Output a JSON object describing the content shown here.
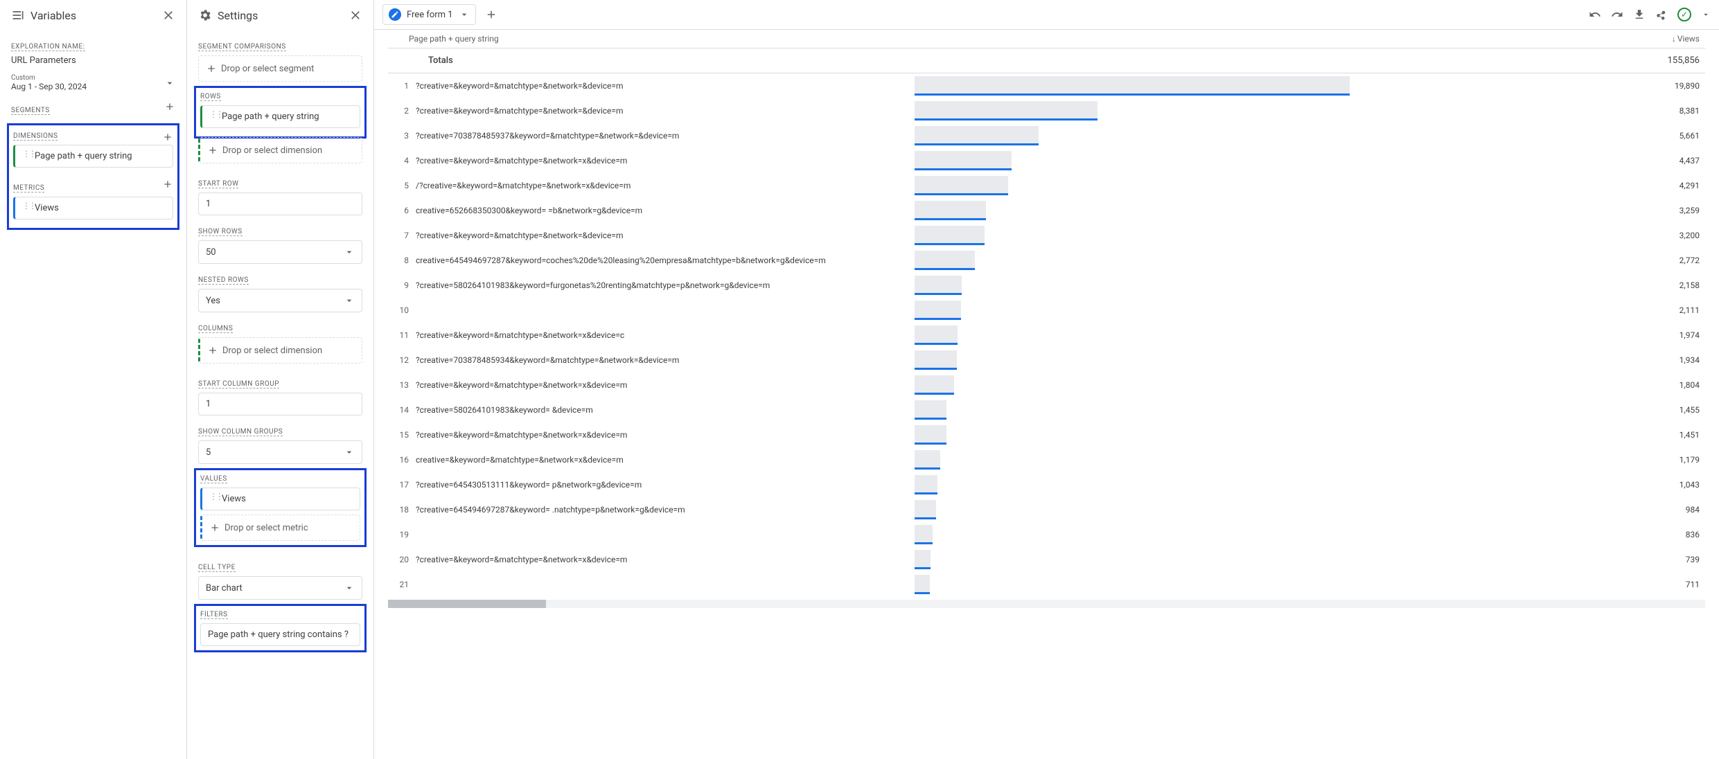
{
  "variables": {
    "panel_title": "Variables",
    "exploration_name_label": "EXPLORATION NAME:",
    "exploration_name": "URL Parameters",
    "date_custom_label": "Custom",
    "date_range": "Aug 1 - Sep 30, 2024",
    "segments_label": "SEGMENTS",
    "dimensions_label": "DIMENSIONS",
    "dimension_chip": "Page path + query string",
    "metrics_label": "METRICS",
    "metric_chip": "Views"
  },
  "settings": {
    "panel_title": "Settings",
    "segment_comparisons_label": "SEGMENT COMPARISONS",
    "drop_segment": "Drop or select segment",
    "rows_label": "ROWS",
    "rows_chip": "Page path + query string",
    "drop_dimension": "Drop or select dimension",
    "start_row_label": "START ROW",
    "start_row_value": "1",
    "show_rows_label": "SHOW ROWS",
    "show_rows_value": "50",
    "nested_rows_label": "NESTED ROWS",
    "nested_rows_value": "Yes",
    "columns_label": "COLUMNS",
    "start_col_label": "START COLUMN GROUP",
    "start_col_value": "1",
    "show_col_label": "SHOW COLUMN GROUPS",
    "show_col_value": "5",
    "values_label": "VALUES",
    "values_chip": "Views",
    "drop_metric": "Drop or select metric",
    "cell_type_label": "CELL TYPE",
    "cell_type_value": "Bar chart",
    "filters_label": "FILTERS",
    "filter_text": "Page path + query string contains ?"
  },
  "tab": {
    "name": "Free form 1"
  },
  "table": {
    "dim_header": "Page path + query string",
    "val_header": "Views",
    "totals_label": "Totals",
    "totals_value": "155,856",
    "max_bar": 19890,
    "rows": [
      {
        "dim": "?creative=&keyword=&matchtype=&network=&device=m",
        "val": 19890,
        "disp": "19,890"
      },
      {
        "dim": "?creative=&keyword=&matchtype=&network=&device=m",
        "val": 8381,
        "disp": "8,381"
      },
      {
        "dim": "?creative=703878485937&keyword=&matchtype=&network=&device=m",
        "val": 5661,
        "disp": "5,661"
      },
      {
        "dim": "?creative=&keyword=&matchtype=&network=x&device=m",
        "val": 4437,
        "disp": "4,437"
      },
      {
        "dim": "/?creative=&keyword=&matchtype=&network=x&device=m",
        "val": 4291,
        "disp": "4,291"
      },
      {
        "dim": "creative=652668350300&keyword=       =b&network=g&device=m",
        "val": 3259,
        "disp": "3,259"
      },
      {
        "dim": "?creative=&keyword=&matchtype=&network=&device=m",
        "val": 3200,
        "disp": "3,200"
      },
      {
        "dim": "creative=645494697287&keyword=coches%20de%20leasing%20empresa&matchtype=b&network=g&device=m",
        "val": 2772,
        "disp": "2,772"
      },
      {
        "dim": "?creative=580264101983&keyword=furgonetas%20renting&matchtype=p&network=g&device=m",
        "val": 2158,
        "disp": "2,158"
      },
      {
        "dim": "",
        "val": 2111,
        "disp": "2,111"
      },
      {
        "dim": "?creative=&keyword=&matchtype=&network=x&device=c",
        "val": 1974,
        "disp": "1,974"
      },
      {
        "dim": "?creative=703878485934&keyword=&matchtype=&network=&device=m",
        "val": 1934,
        "disp": "1,934"
      },
      {
        "dim": "?creative=&keyword=&matchtype=&network=x&device=m",
        "val": 1804,
        "disp": "1,804"
      },
      {
        "dim": "?creative=580264101983&keyword=                                                &device=m",
        "val": 1455,
        "disp": "1,455"
      },
      {
        "dim": "?creative=&keyword=&matchtype=&network=x&device=m",
        "val": 1451,
        "disp": "1,451"
      },
      {
        "dim": "creative=&keyword=&matchtype=&network=x&device=m",
        "val": 1179,
        "disp": "1,179"
      },
      {
        "dim": "?creative=645430513111&keyword=                                        p&network=g&device=m",
        "val": 1043,
        "disp": "1,043"
      },
      {
        "dim": "?creative=645494697287&keyword=                                   .natchtype=p&network=g&device=m",
        "val": 984,
        "disp": "984"
      },
      {
        "dim": "",
        "val": 836,
        "disp": "836"
      },
      {
        "dim": "?creative=&keyword=&matchtype=&network=x&device=m",
        "val": 739,
        "disp": "739"
      },
      {
        "dim": "",
        "val": 711,
        "disp": "711"
      }
    ]
  },
  "colors": {
    "accent": "#1a73e8",
    "green": "#1e8e3e",
    "highlight": "#1a3cd6",
    "bar_bg": "#e8eaed"
  }
}
